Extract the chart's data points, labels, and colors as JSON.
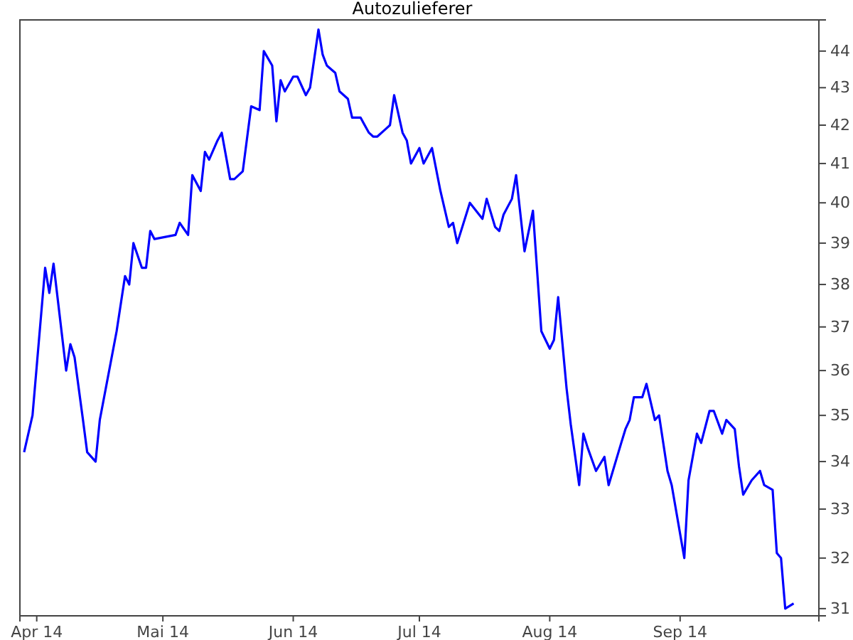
{
  "chart_data": {
    "type": "line",
    "title": "Autozulieferer",
    "x": [
      "2014-03-29",
      "2014-03-31",
      "2014-04-03",
      "2014-04-04",
      "2014-04-05",
      "2014-04-08",
      "2014-04-09",
      "2014-04-10",
      "2014-04-12",
      "2014-04-13",
      "2014-04-15",
      "2014-04-16",
      "2014-04-20",
      "2014-04-22",
      "2014-04-23",
      "2014-04-24",
      "2014-04-26",
      "2014-04-27",
      "2014-04-28",
      "2014-04-29",
      "2014-05-04",
      "2014-05-05",
      "2014-05-07",
      "2014-05-08",
      "2014-05-10",
      "2014-05-11",
      "2014-05-12",
      "2014-05-14",
      "2014-05-15",
      "2014-05-17",
      "2014-05-18",
      "2014-05-20",
      "2014-05-22",
      "2014-05-24",
      "2014-05-25",
      "2014-05-27",
      "2014-05-28",
      "2014-05-29",
      "2014-05-30",
      "2014-06-01",
      "2014-06-02",
      "2014-06-04",
      "2014-06-05",
      "2014-06-07",
      "2014-06-08",
      "2014-06-09",
      "2014-06-11",
      "2014-06-12",
      "2014-06-14",
      "2014-06-15",
      "2014-06-17",
      "2014-06-19",
      "2014-06-20",
      "2014-06-21",
      "2014-06-23",
      "2014-06-24",
      "2014-06-25",
      "2014-06-27",
      "2014-06-28",
      "2014-06-29",
      "2014-07-01",
      "2014-07-02",
      "2014-07-04",
      "2014-07-06",
      "2014-07-08",
      "2014-07-09",
      "2014-07-10",
      "2014-07-13",
      "2014-07-16",
      "2014-07-17",
      "2014-07-19",
      "2014-07-20",
      "2014-07-21",
      "2014-07-23",
      "2014-07-24",
      "2014-07-26",
      "2014-07-28",
      "2014-07-30",
      "2014-08-01",
      "2014-08-02",
      "2014-08-03",
      "2014-08-05",
      "2014-08-06",
      "2014-08-08",
      "2014-08-09",
      "2014-08-10",
      "2014-08-12",
      "2014-08-14",
      "2014-08-15",
      "2014-08-18",
      "2014-08-19",
      "2014-08-20",
      "2014-08-21",
      "2014-08-23",
      "2014-08-24",
      "2014-08-26",
      "2014-08-27",
      "2014-08-29",
      "2014-08-30",
      "2014-09-02",
      "2014-09-03",
      "2014-09-05",
      "2014-09-06",
      "2014-09-08",
      "2014-09-09",
      "2014-09-11",
      "2014-09-12",
      "2014-09-14",
      "2014-09-15",
      "2014-09-16",
      "2014-09-18",
      "2014-09-20",
      "2014-09-21",
      "2014-09-23",
      "2014-09-24",
      "2014-09-25",
      "2014-09-26",
      "2014-09-28"
    ],
    "series": [
      {
        "color": "#0000ff",
        "values": [
          34.2,
          35.0,
          38.4,
          37.8,
          38.5,
          36.0,
          36.6,
          36.3,
          34.9,
          34.2,
          34.0,
          34.9,
          36.9,
          38.2,
          38.0,
          39.0,
          38.4,
          38.4,
          39.3,
          39.1,
          39.2,
          39.5,
          39.2,
          40.7,
          40.3,
          41.3,
          41.1,
          41.6,
          41.8,
          40.6,
          40.6,
          40.8,
          42.5,
          42.4,
          44.0,
          43.6,
          42.1,
          43.2,
          42.9,
          43.3,
          43.3,
          42.8,
          43.0,
          44.6,
          43.9,
          43.6,
          43.4,
          42.9,
          42.7,
          42.2,
          42.2,
          41.8,
          41.7,
          41.7,
          41.9,
          42.0,
          42.8,
          41.8,
          41.6,
          41.0,
          41.4,
          41.0,
          41.4,
          40.3,
          39.4,
          39.5,
          39.0,
          40.0,
          39.6,
          40.1,
          39.4,
          39.3,
          39.7,
          40.1,
          40.7,
          38.8,
          39.8,
          36.9,
          36.5,
          36.7,
          37.7,
          35.6,
          34.8,
          33.5,
          34.6,
          34.3,
          33.8,
          34.1,
          33.5,
          34.4,
          34.7,
          34.9,
          35.4,
          35.4,
          35.7,
          34.9,
          35.0,
          33.8,
          33.5,
          32.0,
          33.6,
          34.6,
          34.4,
          35.1,
          35.1,
          34.6,
          34.9,
          34.7,
          33.9,
          33.3,
          33.6,
          33.8,
          33.5,
          33.4,
          32.1,
          32.0,
          31.0,
          31.1
        ]
      }
    ],
    "xlim": [
      "2014-03-28",
      "2014-10-04"
    ],
    "xticks": [
      {
        "value": "2014-04-01",
        "label": "Apr 14"
      },
      {
        "value": "2014-05-01",
        "label": "Mai 14"
      },
      {
        "value": "2014-06-01",
        "label": "Jun 14"
      },
      {
        "value": "2014-07-01",
        "label": "Jul 14"
      },
      {
        "value": "2014-08-01",
        "label": "Aug 14"
      },
      {
        "value": "2014-09-01",
        "label": "Sep 14"
      }
    ],
    "log": true,
    "ylim": [
      30.86,
      44.87
    ],
    "yticks": [
      31,
      32,
      33,
      34,
      35,
      36,
      37,
      38,
      39,
      40,
      41,
      42,
      43,
      44
    ],
    "line_style": "solid"
  }
}
